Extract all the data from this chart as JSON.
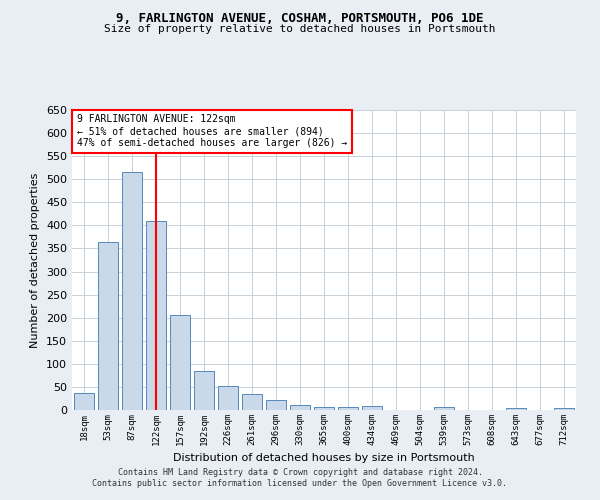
{
  "title1": "9, FARLINGTON AVENUE, COSHAM, PORTSMOUTH, PO6 1DE",
  "title2": "Size of property relative to detached houses in Portsmouth",
  "xlabel": "Distribution of detached houses by size in Portsmouth",
  "ylabel": "Number of detached properties",
  "categories": [
    "18sqm",
    "53sqm",
    "87sqm",
    "122sqm",
    "157sqm",
    "192sqm",
    "226sqm",
    "261sqm",
    "296sqm",
    "330sqm",
    "365sqm",
    "400sqm",
    "434sqm",
    "469sqm",
    "504sqm",
    "539sqm",
    "573sqm",
    "608sqm",
    "643sqm",
    "677sqm",
    "712sqm"
  ],
  "values": [
    37,
    365,
    515,
    410,
    205,
    84,
    53,
    35,
    22,
    10,
    7,
    7,
    8,
    0,
    0,
    6,
    0,
    0,
    5,
    0,
    4
  ],
  "bar_color": "#c9d9ea",
  "bar_edge_color": "#5588bb",
  "redline_index": 3,
  "annotation_text_line1": "9 FARLINGTON AVENUE: 122sqm",
  "annotation_text_line2": "← 51% of detached houses are smaller (894)",
  "annotation_text_line3": "47% of semi-detached houses are larger (826) →",
  "ylim": [
    0,
    650
  ],
  "yticks": [
    0,
    50,
    100,
    150,
    200,
    250,
    300,
    350,
    400,
    450,
    500,
    550,
    600,
    650
  ],
  "footer1": "Contains HM Land Registry data © Crown copyright and database right 2024.",
  "footer2": "Contains public sector information licensed under the Open Government Licence v3.0.",
  "bg_color": "#e8eef4",
  "plot_bg_color": "#ffffff",
  "grid_color": "#c8d0d8"
}
